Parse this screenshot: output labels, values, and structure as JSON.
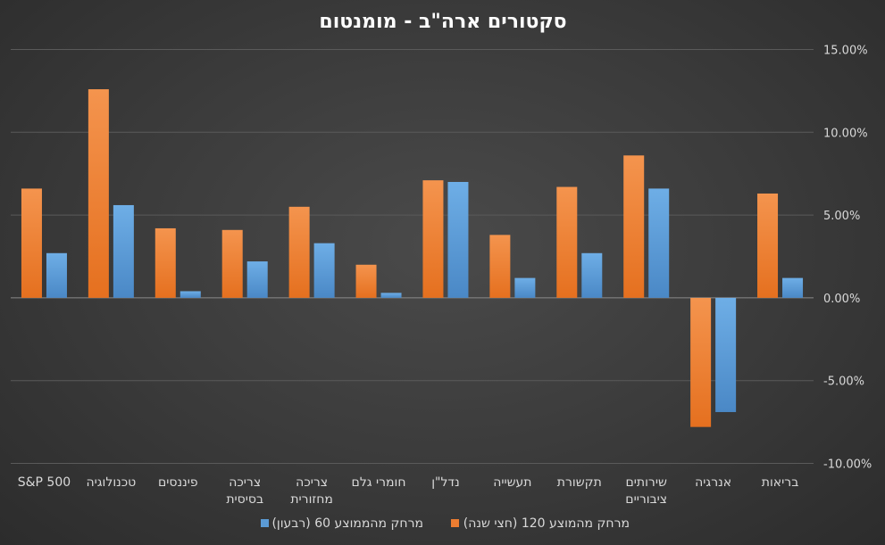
{
  "chart_data": {
    "type": "bar",
    "title": "סקטורים ארה\"ב - מומנטום",
    "categories": [
      "בריאות",
      "אנרגיה",
      "שירותים ציבוריים",
      "תקשורת",
      "תעשייה",
      "נדל\"ן",
      "חומרי גלם",
      "צריכה מחזורית",
      "צריכה בסיסית",
      "פיננסים",
      "טכנולוגיה",
      "S&P 500"
    ],
    "category_lines": [
      [
        "בריאות"
      ],
      [
        "אנרגיה"
      ],
      [
        "שירותים",
        "ציבוריים"
      ],
      [
        "תקשורת"
      ],
      [
        "תעשייה"
      ],
      [
        "נדל\"ן"
      ],
      [
        "חומרי גלם"
      ],
      [
        "צריכה",
        "מחזורית"
      ],
      [
        "צריכה",
        "בסיסית"
      ],
      [
        "פיננסים"
      ],
      [
        "טכנולוגיה"
      ],
      [
        "S&P 500"
      ]
    ],
    "series": [
      {
        "name": "מרחק מהמוצע 120 (חצי שנה)",
        "color": "#ed7d31",
        "values": [
          6.3,
          -7.8,
          8.6,
          6.7,
          3.8,
          7.1,
          2.0,
          5.5,
          4.1,
          4.2,
          12.6,
          6.6
        ]
      },
      {
        "name": "מרחק מהממוצע 60 (רבעון)",
        "color": "#5b9bd5",
        "values": [
          1.2,
          -6.9,
          6.6,
          2.7,
          1.2,
          7.0,
          0.3,
          3.3,
          2.2,
          0.4,
          5.6,
          2.7
        ]
      }
    ],
    "ylim": [
      -10,
      15
    ],
    "yticks": [
      {
        "value": 15,
        "label": "15.00%"
      },
      {
        "value": 10,
        "label": "10.00%"
      },
      {
        "value": 5,
        "label": "5.00%"
      },
      {
        "value": 0,
        "label": "0.00%"
      },
      {
        "value": -5,
        "label": "-5.00%"
      },
      {
        "value": -10,
        "label": "-10.00%"
      }
    ],
    "y_axis_side": "right",
    "category_order": "right-to-left",
    "grid": true,
    "legend_position": "bottom",
    "colors": {
      "grid": "#5a5a5a",
      "axis": "#8a8a8a",
      "text": "#d9d9d9"
    }
  }
}
